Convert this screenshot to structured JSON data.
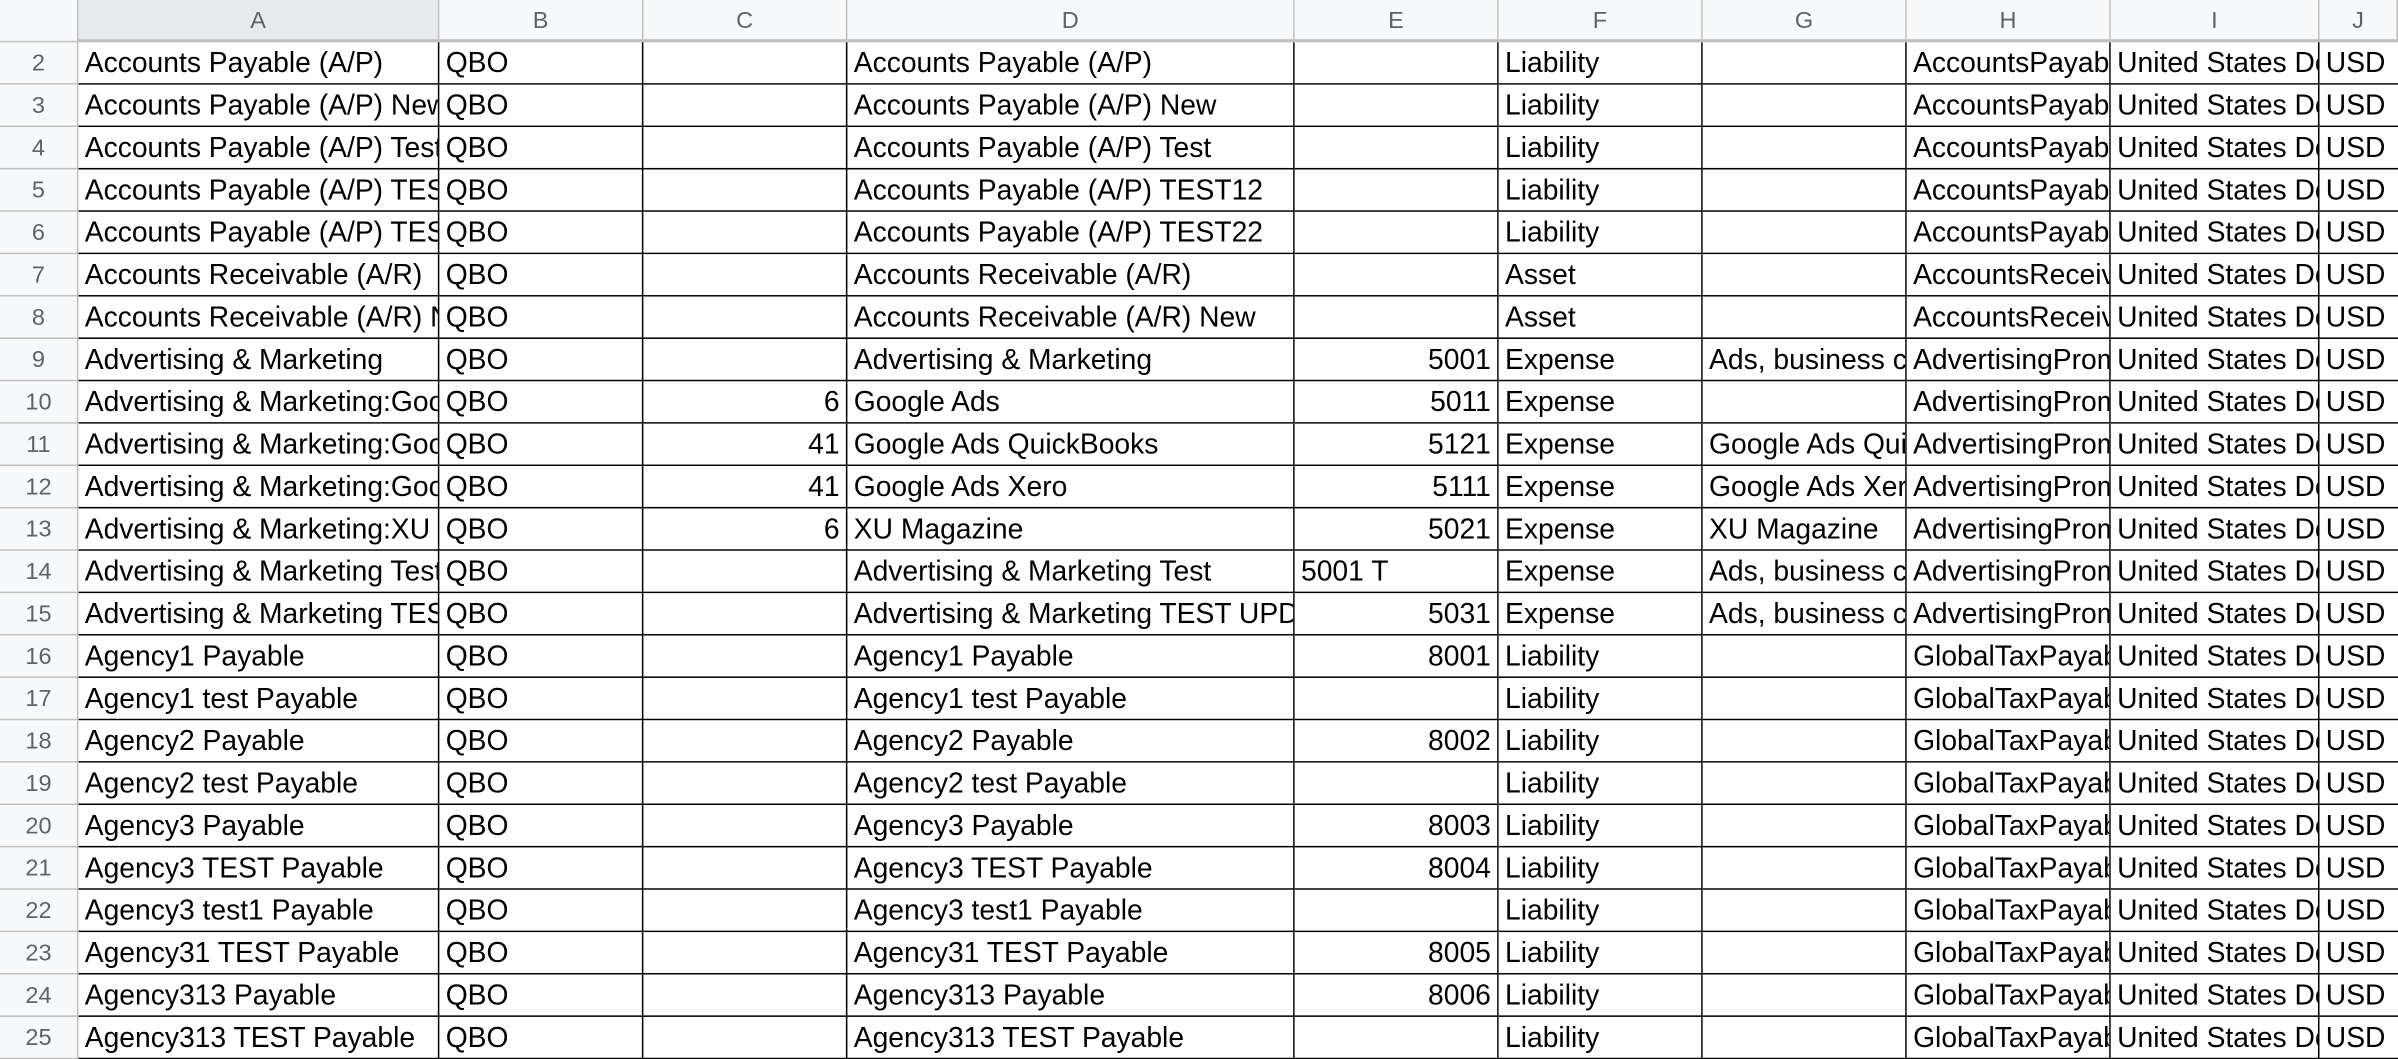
{
  "columns": [
    "A",
    "B",
    "C",
    "D",
    "E",
    "F",
    "G",
    "H",
    "I",
    "J"
  ],
  "startRow": 2,
  "rows": [
    {
      "n": 2,
      "A": "Accounts Payable (A/P)",
      "B": "QBO",
      "C": "",
      "D": "Accounts Payable (A/P)",
      "E": "",
      "F": "Liability",
      "G": "",
      "H": "AccountsPayable",
      "I": "United States Do",
      "J": "USD"
    },
    {
      "n": 3,
      "A": "Accounts Payable (A/P) New",
      "B": "QBO",
      "C": "",
      "D": "Accounts Payable (A/P) New",
      "E": "",
      "F": "Liability",
      "G": "",
      "H": "AccountsPayable",
      "I": "United States Do",
      "J": "USD"
    },
    {
      "n": 4,
      "A": "Accounts Payable (A/P) Test",
      "B": "QBO",
      "C": "",
      "D": "Accounts Payable (A/P) Test",
      "E": "",
      "F": "Liability",
      "G": "",
      "H": "AccountsPayable",
      "I": "United States Do",
      "J": "USD"
    },
    {
      "n": 5,
      "A": "Accounts Payable (A/P) TEST",
      "B": "QBO",
      "C": "",
      "D": "Accounts Payable (A/P) TEST12",
      "E": "",
      "F": "Liability",
      "G": "",
      "H": "AccountsPayable",
      "I": "United States Do",
      "J": "USD"
    },
    {
      "n": 6,
      "A": "Accounts Payable (A/P) TEST",
      "B": "QBO",
      "C": "",
      "D": "Accounts Payable (A/P) TEST22",
      "E": "",
      "F": "Liability",
      "G": "",
      "H": "AccountsPayable",
      "I": "United States Do",
      "J": "USD"
    },
    {
      "n": 7,
      "A": "Accounts Receivable (A/R)",
      "B": "QBO",
      "C": "",
      "D": "Accounts Receivable (A/R)",
      "E": "",
      "F": "Asset",
      "G": "",
      "H": "AccountsReceiva",
      "I": "United States Do",
      "J": "USD"
    },
    {
      "n": 8,
      "A": "Accounts Receivable (A/R) Ne",
      "B": "QBO",
      "C": "",
      "D": "Accounts Receivable (A/R) New",
      "E": "",
      "F": "Asset",
      "G": "",
      "H": "AccountsReceiva",
      "I": "United States Do",
      "J": "USD"
    },
    {
      "n": 9,
      "A": "Advertising & Marketing",
      "B": "QBO",
      "C": "",
      "D": "Advertising & Marketing",
      "E": "5001",
      "Enum": true,
      "F": "Expense",
      "G": "Ads, business ca",
      "H": "AdvertisingProm",
      "I": "United States Do",
      "J": "USD"
    },
    {
      "n": 10,
      "A": "Advertising & Marketing:Goog",
      "B": "QBO",
      "C": "6",
      "Cnum": true,
      "D": "Google Ads",
      "E": "5011",
      "Enum": true,
      "F": "Expense",
      "G": "",
      "H": "AdvertisingProm",
      "I": "United States Do",
      "J": "USD"
    },
    {
      "n": 11,
      "A": "Advertising & Marketing:Goog",
      "B": "QBO",
      "C": "41",
      "Cnum": true,
      "D": "Google Ads QuickBooks",
      "E": "5121",
      "Enum": true,
      "F": "Expense",
      "G": "Google Ads Quic",
      "H": "AdvertisingProm",
      "I": "United States Do",
      "J": "USD"
    },
    {
      "n": 12,
      "A": "Advertising & Marketing:Goog",
      "B": "QBO",
      "C": "41",
      "Cnum": true,
      "D": "Google Ads Xero",
      "E": "5111",
      "Enum": true,
      "F": "Expense",
      "G": "Google Ads Xero",
      "H": "AdvertisingProm",
      "I": "United States Do",
      "J": "USD"
    },
    {
      "n": 13,
      "A": "Advertising & Marketing:XU M",
      "B": "QBO",
      "C": "6",
      "Cnum": true,
      "D": "XU Magazine",
      "E": "5021",
      "Enum": true,
      "F": "Expense",
      "G": "XU Magazine",
      "H": "AdvertisingProm",
      "I": "United States Do",
      "J": "USD"
    },
    {
      "n": 14,
      "A": "Advertising & Marketing Test",
      "B": "QBO",
      "C": "",
      "D": "Advertising & Marketing Test",
      "E": "5001 T",
      "F": "Expense",
      "G": "Ads, business ca",
      "H": "AdvertisingProm",
      "I": "United States Do",
      "J": "USD"
    },
    {
      "n": 15,
      "A": "Advertising & Marketing TEST",
      "B": "QBO",
      "C": "",
      "D": "Advertising & Marketing TEST UPDA",
      "E": "5031",
      "Enum": true,
      "F": "Expense",
      "G": "Ads, business ca",
      "H": "AdvertisingProm",
      "I": "United States Do",
      "J": "USD"
    },
    {
      "n": 16,
      "A": "Agency1 Payable",
      "B": "QBO",
      "C": "",
      "D": "Agency1 Payable",
      "E": "8001",
      "Enum": true,
      "F": "Liability",
      "G": "",
      "H": "GlobalTaxPayabl",
      "I": "United States Do",
      "J": "USD"
    },
    {
      "n": 17,
      "A": "Agency1 test Payable",
      "B": "QBO",
      "C": "",
      "D": "Agency1 test Payable",
      "E": "",
      "F": "Liability",
      "G": "",
      "H": "GlobalTaxPayabl",
      "I": "United States Do",
      "J": "USD"
    },
    {
      "n": 18,
      "A": "Agency2 Payable",
      "B": "QBO",
      "C": "",
      "D": "Agency2 Payable",
      "E": "8002",
      "Enum": true,
      "F": "Liability",
      "G": "",
      "H": "GlobalTaxPayabl",
      "I": "United States Do",
      "J": "USD"
    },
    {
      "n": 19,
      "A": "Agency2 test Payable",
      "B": "QBO",
      "C": "",
      "D": "Agency2 test Payable",
      "E": "",
      "F": "Liability",
      "G": "",
      "H": "GlobalTaxPayabl",
      "I": "United States Do",
      "J": "USD"
    },
    {
      "n": 20,
      "A": "Agency3 Payable",
      "B": "QBO",
      "C": "",
      "D": "Agency3 Payable",
      "E": "8003",
      "Enum": true,
      "F": "Liability",
      "G": "",
      "H": "GlobalTaxPayabl",
      "I": "United States Do",
      "J": "USD"
    },
    {
      "n": 21,
      "A": "Agency3 TEST Payable",
      "B": "QBO",
      "C": "",
      "D": "Agency3 TEST Payable",
      "E": "8004",
      "Enum": true,
      "F": "Liability",
      "G": "",
      "H": "GlobalTaxPayabl",
      "I": "United States Do",
      "J": "USD"
    },
    {
      "n": 22,
      "A": "Agency3 test1 Payable",
      "B": "QBO",
      "C": "",
      "D": "Agency3 test1 Payable",
      "E": "",
      "F": "Liability",
      "G": "",
      "H": "GlobalTaxPayabl",
      "I": "United States Do",
      "J": "USD"
    },
    {
      "n": 23,
      "A": "Agency31 TEST Payable",
      "B": "QBO",
      "C": "",
      "D": "Agency31 TEST Payable",
      "E": "8005",
      "Enum": true,
      "F": "Liability",
      "G": "",
      "H": "GlobalTaxPayabl",
      "I": "United States Do",
      "J": "USD"
    },
    {
      "n": 24,
      "A": "Agency313 Payable",
      "B": "QBO",
      "C": "",
      "D": "Agency313 Payable",
      "E": "8006",
      "Enum": true,
      "F": "Liability",
      "G": "",
      "H": "GlobalTaxPayabl",
      "I": "United States Do",
      "J": "USD"
    },
    {
      "n": 25,
      "A": "Agency313 TEST Payable",
      "B": "QBO",
      "C": "",
      "D": "Agency313 TEST Payable",
      "E": "",
      "F": "Liability",
      "G": "",
      "H": "GlobalTaxPayabl",
      "I": "United States Do",
      "J": "USD"
    }
  ],
  "styling": {
    "rowHeightPx": 27,
    "headerBg": "#f8f9fa",
    "headerSelectedBg": "#e8eaed",
    "gridLight": "#c0c0c0",
    "gridDark": "#000000",
    "textColor": "#000000",
    "headerTextColor": "#5f6368",
    "fontSizePx": 18,
    "colWidthsPx": {
      "rownum": 50,
      "A": 230,
      "B": 130,
      "C": 130,
      "D": 285,
      "E": 130,
      "F": 130,
      "G": 130,
      "H": 130,
      "I": 133,
      "J": 50
    },
    "selectedColumn": "A"
  }
}
